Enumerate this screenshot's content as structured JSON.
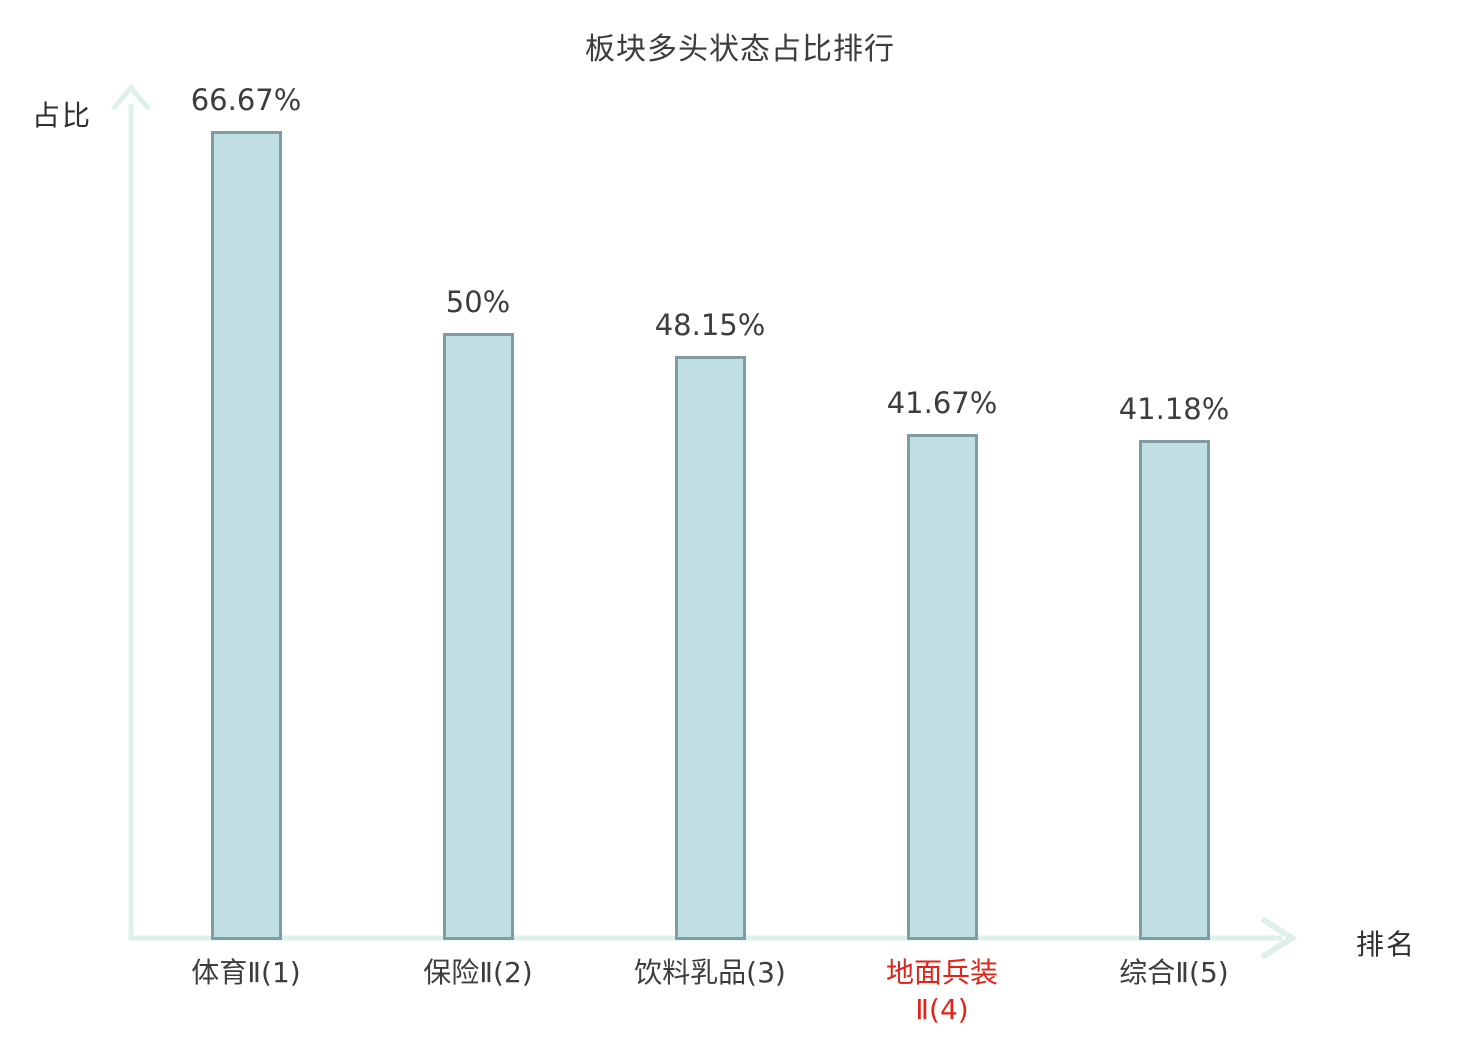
{
  "chart_data": {
    "type": "bar",
    "title": "板块多头状态占比排行",
    "xlabel": "排名",
    "ylabel": "占比",
    "categories": [
      "体育Ⅱ(1)",
      "保险Ⅱ(2)",
      "饮料乳品(3)",
      "地面兵装Ⅱ(4)",
      "综合Ⅱ(5)"
    ],
    "values": [
      66.67,
      50,
      48.15,
      41.67,
      41.18
    ],
    "value_labels": [
      "66.67%",
      "50%",
      "48.15%",
      "41.67%",
      "41.18%"
    ],
    "category_lines": [
      [
        "体育Ⅱ(1)"
      ],
      [
        "保险Ⅱ(2)"
      ],
      [
        "饮料乳品(3)"
      ],
      [
        "地面兵装",
        "Ⅱ(4)"
      ],
      [
        "综合Ⅱ(5)"
      ]
    ],
    "highlighted_index": 3,
    "ylim": [
      0,
      70
    ],
    "grid": false,
    "legend": null,
    "style": {
      "bar_fill": "#c0dfe2",
      "bar_border": "#7f9ca1",
      "axis_color": "#def0ec",
      "text_color": "#3d3d3d",
      "highlight_color": "#e02419"
    }
  }
}
